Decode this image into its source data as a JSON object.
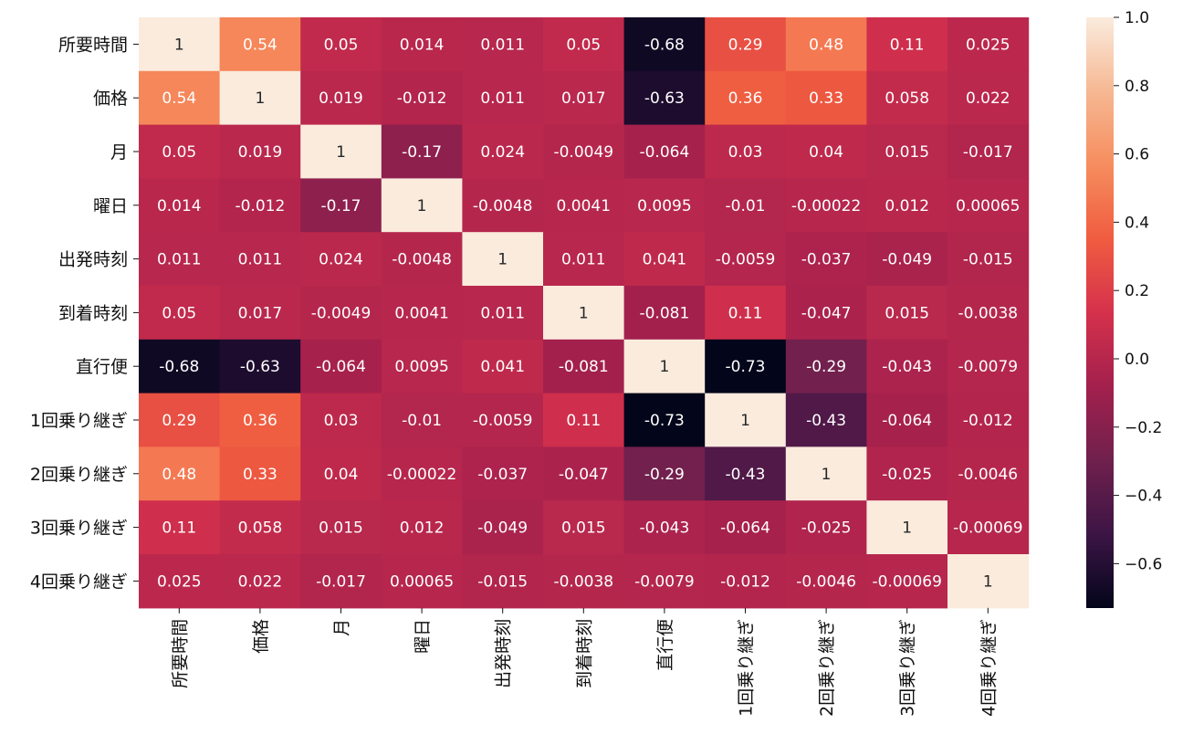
{
  "chart_data": {
    "type": "heatmap",
    "title": "",
    "xlabel": "",
    "ylabel": "",
    "labels": [
      "所要時間",
      "価格",
      "月",
      "曜日",
      "出発時刻",
      "到着時刻",
      "直行便",
      "1回乗り継ぎ",
      "2回乗り継ぎ",
      "3回乗り継ぎ",
      "4回乗り継ぎ"
    ],
    "values": [
      [
        1,
        0.54,
        0.05,
        0.014,
        0.011,
        0.05,
        -0.68,
        0.29,
        0.48,
        0.11,
        0.025
      ],
      [
        0.54,
        1,
        0.019,
        -0.012,
        0.011,
        0.017,
        -0.63,
        0.36,
        0.33,
        0.058,
        0.022
      ],
      [
        0.05,
        0.019,
        1,
        -0.17,
        0.024,
        -0.0049,
        -0.064,
        0.03,
        0.04,
        0.015,
        -0.017
      ],
      [
        0.014,
        -0.012,
        -0.17,
        1,
        -0.0048,
        0.0041,
        0.0095,
        -0.01,
        -0.00022,
        0.012,
        0.00065
      ],
      [
        0.011,
        0.011,
        0.024,
        -0.0048,
        1,
        0.011,
        0.041,
        -0.0059,
        -0.037,
        -0.049,
        -0.015
      ],
      [
        0.05,
        0.017,
        -0.0049,
        0.0041,
        0.011,
        1,
        -0.081,
        0.11,
        -0.047,
        0.015,
        -0.0038
      ],
      [
        -0.68,
        -0.63,
        -0.064,
        0.0095,
        0.041,
        -0.081,
        1,
        -0.73,
        -0.29,
        -0.043,
        -0.0079
      ],
      [
        0.29,
        0.36,
        0.03,
        -0.01,
        -0.0059,
        0.11,
        -0.73,
        1,
        -0.43,
        -0.064,
        -0.012
      ],
      [
        0.48,
        0.33,
        0.04,
        -0.00022,
        -0.037,
        -0.047,
        -0.29,
        -0.43,
        1,
        -0.025,
        -0.0046
      ],
      [
        0.11,
        0.058,
        0.015,
        0.012,
        -0.049,
        0.015,
        -0.043,
        -0.064,
        -0.025,
        1,
        -0.00069
      ],
      [
        0.025,
        0.022,
        -0.017,
        0.00065,
        -0.015,
        -0.0038,
        -0.0079,
        -0.012,
        -0.0046,
        -0.00069,
        1
      ]
    ],
    "cell_text": [
      [
        "1",
        "0.54",
        "0.05",
        "0.014",
        "0.011",
        "0.05",
        "-0.68",
        "0.29",
        "0.48",
        "0.11",
        "0.025"
      ],
      [
        "0.54",
        "1",
        "0.019",
        "-0.012",
        "0.011",
        "0.017",
        "-0.63",
        "0.36",
        "0.33",
        "0.058",
        "0.022"
      ],
      [
        "0.05",
        "0.019",
        "1",
        "-0.17",
        "0.024",
        "-0.0049",
        "-0.064",
        "0.03",
        "0.04",
        "0.015",
        "-0.017"
      ],
      [
        "0.014",
        "-0.012",
        "-0.17",
        "1",
        "-0.0048",
        "0.0041",
        "0.0095",
        "-0.01",
        "-0.00022",
        "0.012",
        "0.00065"
      ],
      [
        "0.011",
        "0.011",
        "0.024",
        "-0.0048",
        "1",
        "0.011",
        "0.041",
        "-0.0059",
        "-0.037",
        "-0.049",
        "-0.015"
      ],
      [
        "0.05",
        "0.017",
        "-0.0049",
        "0.0041",
        "0.011",
        "1",
        "-0.081",
        "0.11",
        "-0.047",
        "0.015",
        "-0.0038"
      ],
      [
        "-0.68",
        "-0.63",
        "-0.064",
        "0.0095",
        "0.041",
        "-0.081",
        "1",
        "-0.73",
        "-0.29",
        "-0.043",
        "-0.0079"
      ],
      [
        "0.29",
        "0.36",
        "0.03",
        "-0.01",
        "-0.0059",
        "0.11",
        "-0.73",
        "1",
        "-0.43",
        "-0.064",
        "-0.012"
      ],
      [
        "0.48",
        "0.33",
        "0.04",
        "-0.00022",
        "-0.037",
        "-0.047",
        "-0.29",
        "-0.43",
        "1",
        "-0.025",
        "-0.0046"
      ],
      [
        "0.11",
        "0.058",
        "0.015",
        "0.012",
        "-0.049",
        "0.015",
        "-0.043",
        "-0.064",
        "-0.025",
        "1",
        "-0.00069"
      ],
      [
        "0.025",
        "0.022",
        "-0.017",
        "0.00065",
        "-0.015",
        "-0.0038",
        "-0.0079",
        "-0.012",
        "-0.0046",
        "-0.00069",
        "1"
      ]
    ],
    "colorbar": {
      "vmin": -0.73,
      "vmax": 1.0,
      "ticks": [
        -0.6,
        -0.4,
        -0.2,
        0.0,
        0.2,
        0.4,
        0.6,
        0.8,
        1.0
      ],
      "tick_labels": [
        "−0.6",
        "−0.4",
        "−0.2",
        "0.0",
        "0.2",
        "0.4",
        "0.6",
        "0.8",
        "1.0"
      ]
    },
    "colormap": "rocket",
    "colormap_stops": [
      "#03051a",
      "#3c1545",
      "#70204d",
      "#a3204d",
      "#d5314c",
      "#f05c40",
      "#f68d5e",
      "#f6b893",
      "#faebdd"
    ],
    "text_color_dark": "#262626",
    "text_color_light": "#ffffff",
    "grid": false
  }
}
